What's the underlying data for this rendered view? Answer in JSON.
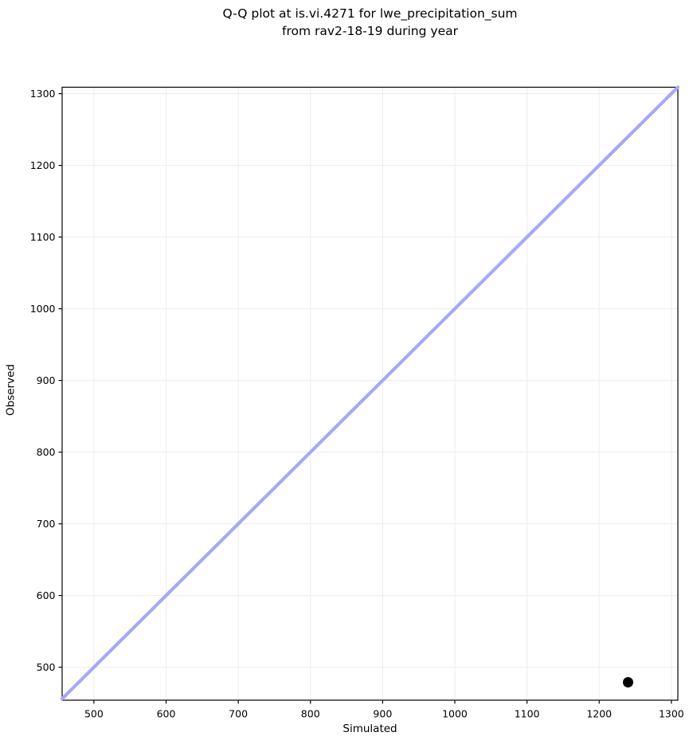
{
  "chart_data": {
    "type": "scatter",
    "title": "Q-Q plot at is.vi.4271 for lwe_precipitation_sum\nfrom rav2-18-19 during year",
    "title_lines": [
      "Q-Q plot at is.vi.4271 for lwe_precipitation_sum",
      "from rav2-18-19 during year"
    ],
    "xlabel": "Simulated",
    "ylabel": "Observed",
    "xlim": [
      456,
      1309
    ],
    "ylim": [
      454,
      1309
    ],
    "xticks": [
      500,
      600,
      700,
      800,
      900,
      1000,
      1100,
      1200,
      1300
    ],
    "yticks": [
      500,
      600,
      700,
      800,
      900,
      1000,
      1100,
      1200,
      1300
    ],
    "grid": true,
    "legend": false,
    "identity_line": {
      "x1": 456,
      "y1": 456,
      "x2": 1309,
      "y2": 1309
    },
    "points": [
      {
        "x": 1240,
        "y": 479
      }
    ],
    "colors": {
      "identity_line": "#a8a8f7",
      "point": "#000000",
      "grid": "#ececec",
      "spine": "#000000",
      "tick": "#000000",
      "text": "#000000",
      "background": "#ffffff"
    }
  }
}
